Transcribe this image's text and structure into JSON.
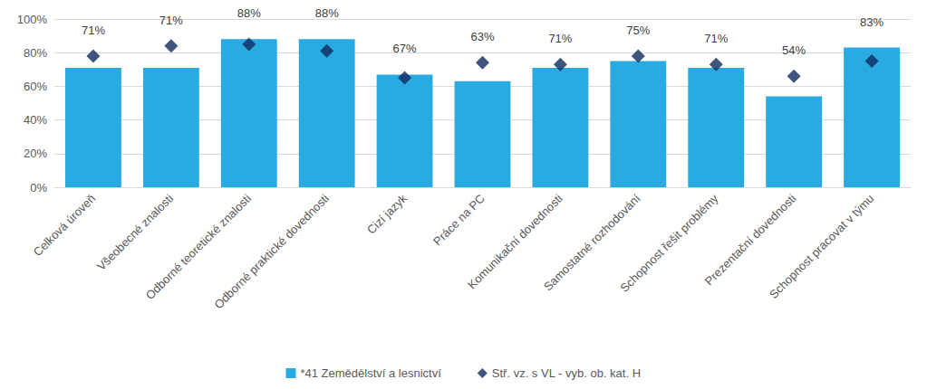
{
  "chart_data": {
    "type": "bar",
    "categories": [
      "Celková úroveň",
      "Všeobecné znalosti",
      "Odborné teoretické znalosti",
      "Odborné praktické dovednosti",
      "Cizí jazyk",
      "Práce na PC",
      "Komunikační dovednosti",
      "Samostatné rozhodování",
      "Schopnost řešit problémy",
      "Prezentační dovednosti",
      "Schopnost pracovat v týmu"
    ],
    "series": [
      {
        "name": "*41 Zemědělství a lesnictví",
        "type": "bar",
        "color": "#29abe2",
        "values": [
          71,
          71,
          88,
          88,
          67,
          63,
          71,
          75,
          71,
          54,
          83
        ],
        "value_labels": [
          "71%",
          "71%",
          "88%",
          "88%",
          "67%",
          "63%",
          "71%",
          "75%",
          "71%",
          "54%",
          "83%"
        ]
      },
      {
        "name": "Stř. vz. s VL - vyb. ob. kat. H",
        "type": "scatter",
        "marker": "diamond",
        "color": "#0f2a5c",
        "values": [
          78,
          84,
          85,
          81,
          65,
          74,
          73,
          78,
          73,
          66,
          75
        ]
      }
    ],
    "ylim": [
      0,
      100
    ],
    "yticks": [
      {
        "value": 0,
        "label": "0%"
      },
      {
        "value": 20,
        "label": "20%"
      },
      {
        "value": 40,
        "label": "40%"
      },
      {
        "value": 60,
        "label": "60%"
      },
      {
        "value": 80,
        "label": "80%"
      },
      {
        "value": 100,
        "label": "100%"
      }
    ],
    "grid": true,
    "legend": "bottom",
    "data_labels": true
  }
}
